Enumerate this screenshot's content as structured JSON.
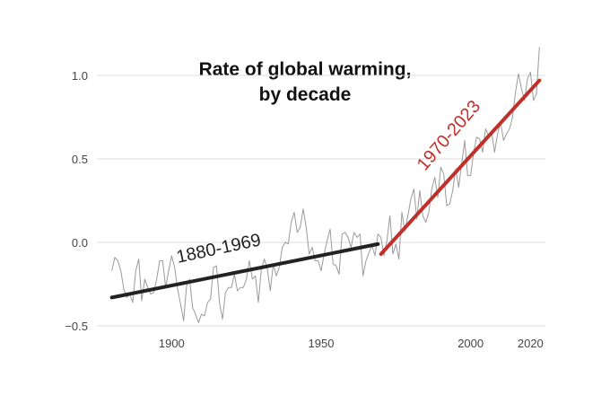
{
  "chart_data": {
    "type": "line",
    "title": "Rate of global warming,",
    "subtitle": "by decade",
    "xlabel": "",
    "ylabel": "",
    "xlim": [
      1875,
      2025
    ],
    "ylim": [
      -0.5,
      1.15
    ],
    "x_ticks": [
      1900,
      1950,
      2000,
      2020
    ],
    "y_ticks": [
      {
        "value": -0.5,
        "label": "−0.5"
      },
      {
        "value": 0.0,
        "label": "0.0"
      },
      {
        "value": 0.5,
        "label": "0.5"
      },
      {
        "value": 1.0,
        "label": "1.0"
      }
    ],
    "grid": "horizontal",
    "series": [
      {
        "name": "",
        "kind": "annual-anomaly",
        "color": "#9a9a9a",
        "x_start": 1880,
        "values": [
          -0.17,
          -0.09,
          -0.11,
          -0.17,
          -0.28,
          -0.33,
          -0.31,
          -0.36,
          -0.17,
          -0.1,
          -0.35,
          -0.22,
          -0.27,
          -0.31,
          -0.3,
          -0.22,
          -0.11,
          -0.11,
          -0.27,
          -0.17,
          -0.08,
          -0.15,
          -0.28,
          -0.37,
          -0.47,
          -0.26,
          -0.22,
          -0.39,
          -0.43,
          -0.48,
          -0.43,
          -0.44,
          -0.36,
          -0.34,
          -0.15,
          -0.14,
          -0.36,
          -0.46,
          -0.3,
          -0.27,
          -0.27,
          -0.19,
          -0.29,
          -0.27,
          -0.27,
          -0.22,
          -0.11,
          -0.22,
          -0.2,
          -0.36,
          -0.16,
          -0.1,
          -0.16,
          -0.29,
          -0.13,
          -0.2,
          -0.15,
          -0.03,
          -0.0,
          -0.01,
          0.12,
          0.18,
          0.06,
          0.09,
          0.2,
          0.09,
          -0.07,
          -0.03,
          -0.11,
          -0.11,
          -0.17,
          -0.07,
          0.01,
          0.08,
          -0.13,
          -0.14,
          -0.19,
          0.05,
          0.06,
          0.03,
          -0.03,
          0.06,
          0.03,
          0.05,
          -0.2,
          -0.11,
          -0.06,
          -0.02,
          -0.08,
          0.05,
          0.03,
          -0.08,
          0.01,
          0.16,
          -0.07,
          -0.01,
          -0.1,
          0.18,
          0.07,
          0.16,
          0.26,
          0.32,
          0.14,
          0.31,
          0.16,
          0.12,
          0.18,
          0.32,
          0.39,
          0.27,
          0.45,
          0.41,
          0.22,
          0.23,
          0.31,
          0.44,
          0.33,
          0.47,
          0.61,
          0.4,
          0.4,
          0.54,
          0.63,
          0.62,
          0.54,
          0.68,
          0.64,
          0.66,
          0.54,
          0.65,
          0.72,
          0.61,
          0.65,
          0.68,
          0.75,
          0.9,
          1.01,
          0.92,
          0.85,
          0.98,
          1.02,
          0.85,
          0.89,
          1.17
        ]
      },
      {
        "name": "1880-1969",
        "kind": "trend",
        "color": "#222222",
        "x": [
          1880,
          1969
        ],
        "y": [
          -0.33,
          -0.01
        ]
      },
      {
        "name": "1970-2023",
        "kind": "trend",
        "color": "#c0302a",
        "x": [
          1970,
          2023
        ],
        "y": [
          -0.07,
          0.97
        ]
      }
    ],
    "annotations": [
      {
        "text": "1880-1969",
        "color": "#222222"
      },
      {
        "text": "1970-2023",
        "color": "#c0302a"
      }
    ]
  }
}
